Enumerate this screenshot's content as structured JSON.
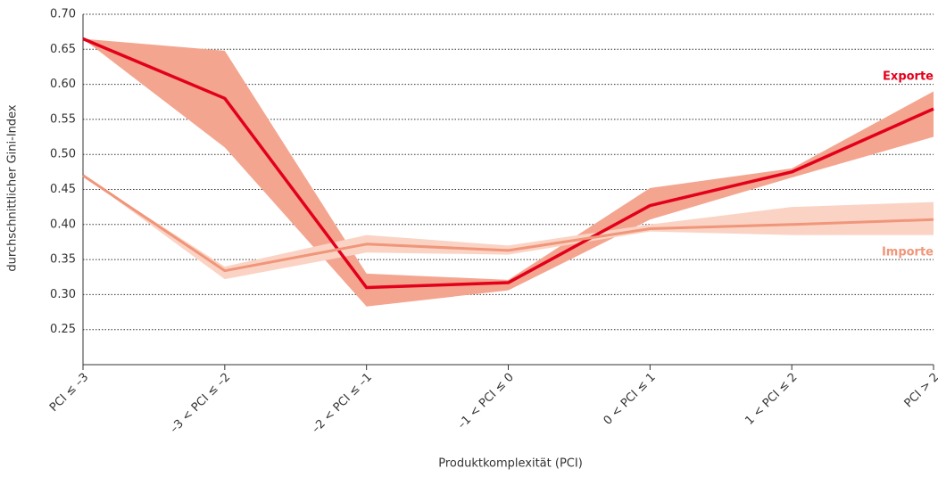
{
  "chart_data": {
    "type": "line",
    "x_label": "Produktkomplexität (PCI)",
    "y_label": "durchschnittlicher Gini-Index",
    "categories": [
      "PCI ≤ –3",
      "–3 < PCI ≤ –2",
      "–2 < PCI ≤ –1",
      "–1 < PCI ≤ 0",
      "0 < PCI ≤ 1",
      "1 < PCI ≤ 2",
      "PCI > 2"
    ],
    "ylim": [
      0.2,
      0.7
    ],
    "yticks": [
      0.25,
      {
        "value": 0.3,
        "label": "0.30"
      },
      0.35,
      {
        "value": 0.4,
        "label": "0.40"
      },
      0.45,
      {
        "value": 0.5,
        "label": "0.50"
      },
      0.55,
      {
        "value": 0.6,
        "label": "0.60"
      },
      0.65,
      {
        "value": 0.7,
        "label": "0.70"
      }
    ],
    "grid": true,
    "series": [
      {
        "name": "Exporte",
        "color": "#e2001a",
        "band_color": "#f4a58f",
        "values": [
          0.665,
          0.58,
          0.31,
          0.317,
          0.427,
          0.475,
          0.565
        ],
        "lower": [
          0.665,
          0.51,
          0.283,
          0.306,
          0.407,
          0.467,
          0.525
        ],
        "upper": [
          0.665,
          0.648,
          0.33,
          0.321,
          0.452,
          0.48,
          0.59
        ]
      },
      {
        "name": "Importe",
        "color": "#f0967a",
        "band_color": "#fbd3c4",
        "values": [
          0.47,
          0.334,
          0.372,
          0.363,
          0.394,
          0.4,
          0.407
        ],
        "lower": [
          0.47,
          0.322,
          0.36,
          0.357,
          0.39,
          0.385,
          0.385
        ],
        "upper": [
          0.47,
          0.34,
          0.385,
          0.37,
          0.4,
          0.425,
          0.432
        ]
      }
    ]
  }
}
